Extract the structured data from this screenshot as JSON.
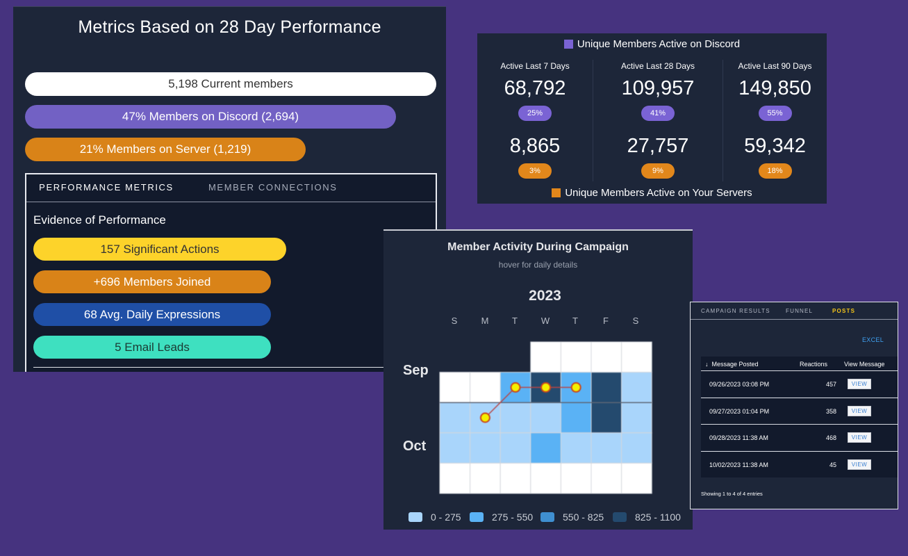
{
  "metrics": {
    "title": "Metrics Based on 28 Day Performance",
    "current_members": "5,198 Current members",
    "discord_members": "47% Members on Discord (2,694)",
    "server_members": "21% Members on Server (1,219)",
    "tabs": [
      "PERFORMANCE METRICS",
      "MEMBER CONNECTIONS"
    ],
    "evidence_title": "Evidence of Performance",
    "evidence": [
      "157 Significant Actions",
      "+696 Members Joined",
      "68 Avg. Daily Expressions",
      "5 Email Leads"
    ],
    "colors": {
      "discord": "#7261c4",
      "server": "#d98318",
      "actions": "#fdd32a",
      "expressions": "#1f4fa6",
      "leads": "#3ee0c0"
    }
  },
  "stats": {
    "discord_legend": "Unique Members Active on Discord",
    "servers_legend": "Unique Members Active on Your Servers",
    "columns": [
      {
        "header": "Active Last 7 Days",
        "discord_value": "68,792",
        "discord_pct": "25%",
        "server_value": "8,865",
        "server_pct": "3%"
      },
      {
        "header": "Active Last 28 Days",
        "discord_value": "109,957",
        "discord_pct": "41%",
        "server_value": "27,757",
        "server_pct": "9%"
      },
      {
        "header": "Active Last 90 Days",
        "discord_value": "149,850",
        "discord_pct": "55%",
        "server_value": "59,342",
        "server_pct": "18%"
      }
    ]
  },
  "calendar": {
    "title": "Member Activity During Campaign",
    "subtitle": "hover for daily details",
    "year": "2023",
    "days": [
      "S",
      "M",
      "T",
      "W",
      "T",
      "F",
      "S"
    ],
    "months": [
      "Sep",
      "Oct"
    ],
    "legend": [
      "0 - 275",
      "275 - 550",
      "550 - 825",
      "825 - 1100"
    ],
    "legend_colors": [
      "#a9d5fb",
      "#5ab2f5",
      "#3f8fd0",
      "#244a6e"
    ],
    "bins": [
      [
        -1,
        -1,
        -1,
        0,
        0,
        0,
        0
      ],
      [
        0,
        0,
        2,
        4,
        2,
        4,
        1
      ],
      [
        1,
        1,
        1,
        1,
        2,
        4,
        1
      ],
      [
        1,
        1,
        1,
        2,
        1,
        1,
        1
      ],
      [
        0,
        0,
        0,
        0,
        0,
        0,
        0
      ]
    ],
    "highlight_points": [
      [
        1,
        2
      ],
      [
        1,
        3
      ],
      [
        1,
        4
      ],
      [
        2,
        1
      ]
    ]
  },
  "posts": {
    "tabs": [
      "CAMPAIGN RESULTS",
      "FUNNEL",
      "POSTS"
    ],
    "excel": "EXCEL",
    "headers": [
      "Message Posted",
      "Reactions",
      "View Message"
    ],
    "sort_icon": "↓",
    "rows": [
      {
        "date": "09/26/2023 03:08 PM",
        "reactions": "457",
        "action": "VIEW"
      },
      {
        "date": "09/27/2023 01:04 PM",
        "reactions": "358",
        "action": "VIEW"
      },
      {
        "date": "09/28/2023 11:38 AM",
        "reactions": "468",
        "action": "VIEW"
      },
      {
        "date": "10/02/2023 11:38 AM",
        "reactions": "45",
        "action": "VIEW"
      }
    ],
    "footer": "Showing 1 to 4 of 4 entries"
  }
}
